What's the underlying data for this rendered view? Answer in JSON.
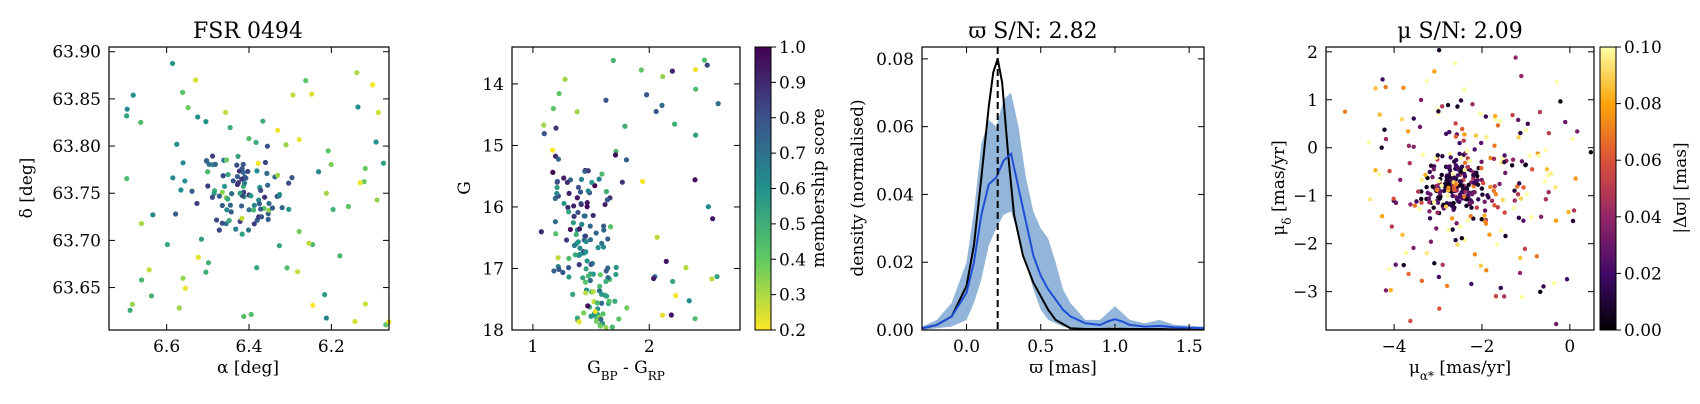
{
  "chart_data": [
    {
      "type": "scatter",
      "id": "sky",
      "title": "FSR 0494",
      "xlabel": "α [deg]",
      "ylabel": "δ [deg]",
      "xlim": [
        6.74,
        6.06
      ],
      "ylim": [
        63.605,
        63.905
      ],
      "xticks": [
        6.6,
        6.4,
        6.2
      ],
      "xtick_labels": [
        "6.6",
        "6.4",
        "6.2"
      ],
      "yticks": [
        63.65,
        63.7,
        63.75,
        63.8,
        63.85,
        63.9
      ],
      "ytick_labels": [
        "63.65",
        "63.70",
        "63.75",
        "63.80",
        "63.85",
        "63.90"
      ],
      "color_by": "membership score"
    },
    {
      "type": "scatter",
      "id": "cmd",
      "title": "",
      "xlabel": "G_BP - G_RP",
      "ylabel": "G",
      "xlim": [
        0.82,
        2.78
      ],
      "ylim": [
        18.0,
        13.4
      ],
      "xticks": [
        1,
        2
      ],
      "xtick_labels": [
        "1",
        "2"
      ],
      "yticks": [
        14,
        15,
        16,
        17,
        18
      ],
      "ytick_labels": [
        "14",
        "15",
        "16",
        "17",
        "18"
      ],
      "colorbar": {
        "label": "membership score",
        "colormap": "viridis_r",
        "range": [
          0.2,
          1.0
        ],
        "ticks": [
          "0.2",
          "0.3",
          "0.4",
          "0.5",
          "0.6",
          "0.7",
          "0.8",
          "0.9",
          "1.0"
        ]
      }
    },
    {
      "type": "line",
      "id": "parallax",
      "title": "ϖ S/N: 2.82",
      "xlabel": "ϖ [mas]",
      "ylabel": "density (normalised)",
      "xlim": [
        -0.3,
        1.6
      ],
      "ylim": [
        0,
        0.0835
      ],
      "xticks": [
        0.0,
        0.5,
        1.0,
        1.5
      ],
      "xtick_labels": [
        "0.0",
        "0.5",
        "1.0",
        "1.5"
      ],
      "yticks": [
        0.0,
        0.02,
        0.04,
        0.06,
        0.08
      ],
      "ytick_labels": [
        "0.00",
        "0.02",
        "0.04",
        "0.06",
        "0.08"
      ],
      "vline": 0.21,
      "series": [
        {
          "name": "cluster density",
          "color": "#000000",
          "x": [
            -0.3,
            -0.2,
            -0.1,
            0.0,
            0.05,
            0.1,
            0.15,
            0.18,
            0.21,
            0.24,
            0.28,
            0.32,
            0.38,
            0.45,
            0.5,
            0.55,
            0.6,
            0.7,
            0.8,
            0.9,
            1.0,
            1.1,
            1.2,
            1.3,
            1.4,
            1.6
          ],
          "y": [
            0.0005,
            0.0015,
            0.004,
            0.013,
            0.025,
            0.045,
            0.066,
            0.076,
            0.08,
            0.073,
            0.052,
            0.034,
            0.022,
            0.014,
            0.01,
            0.006,
            0.003,
            0.0005,
            0.0003,
            0.0003,
            0.0004,
            0.0003,
            0.0003,
            0.0003,
            0.0002,
            0.0002
          ]
        },
        {
          "name": "mean density",
          "color": "#1f4fd6",
          "x": [
            -0.3,
            -0.2,
            -0.1,
            0.0,
            0.05,
            0.1,
            0.15,
            0.2,
            0.25,
            0.3,
            0.35,
            0.4,
            0.45,
            0.5,
            0.55,
            0.6,
            0.65,
            0.7,
            0.8,
            0.9,
            0.95,
            1.0,
            1.05,
            1.1,
            1.2,
            1.3,
            1.4,
            1.6
          ],
          "y": [
            0.0005,
            0.0015,
            0.004,
            0.011,
            0.02,
            0.034,
            0.043,
            0.045,
            0.05,
            0.052,
            0.042,
            0.032,
            0.022,
            0.016,
            0.012,
            0.009,
            0.006,
            0.004,
            0.002,
            0.0015,
            0.0025,
            0.0032,
            0.0025,
            0.0015,
            0.001,
            0.0012,
            0.0008,
            0.0005
          ]
        },
        {
          "name": "1σ band upper",
          "color": "#6e9ccc",
          "x": [
            -0.3,
            -0.2,
            -0.1,
            0.0,
            0.05,
            0.1,
            0.15,
            0.2,
            0.25,
            0.3,
            0.35,
            0.4,
            0.45,
            0.5,
            0.55,
            0.6,
            0.65,
            0.7,
            0.8,
            0.9,
            0.95,
            1.0,
            1.05,
            1.1,
            1.2,
            1.3,
            1.4,
            1.6
          ],
          "y": [
            0.001,
            0.003,
            0.008,
            0.02,
            0.035,
            0.055,
            0.062,
            0.06,
            0.068,
            0.07,
            0.06,
            0.045,
            0.035,
            0.03,
            0.027,
            0.02,
            0.012,
            0.008,
            0.003,
            0.003,
            0.005,
            0.007,
            0.005,
            0.003,
            0.002,
            0.003,
            0.0015,
            0.001
          ]
        },
        {
          "name": "1σ band lower",
          "color": "#6e9ccc",
          "x": [
            -0.3,
            -0.2,
            -0.1,
            0.0,
            0.05,
            0.1,
            0.15,
            0.2,
            0.25,
            0.3,
            0.35,
            0.4,
            0.45,
            0.5,
            0.55,
            0.6,
            0.65,
            0.7,
            0.8,
            0.9,
            0.95,
            1.0,
            1.05,
            1.1,
            1.2,
            1.3,
            1.4,
            1.6
          ],
          "y": [
            0,
            0.0005,
            0.001,
            0.003,
            0.008,
            0.015,
            0.025,
            0.03,
            0.034,
            0.035,
            0.028,
            0.02,
            0.012,
            0.006,
            0.003,
            0.002,
            0.001,
            0.0005,
            0,
            0,
            0.0005,
            0.001,
            0.0005,
            0,
            0,
            0,
            0,
            0
          ]
        }
      ]
    },
    {
      "type": "scatter",
      "id": "pm",
      "title": "μ S/N: 2.09",
      "xlabel": "μ_α* [mas/yr]",
      "ylabel": "μ_δ [mas/yr]",
      "xlim": [
        -5.55,
        0.55
      ],
      "ylim": [
        -3.8,
        2.1
      ],
      "xticks": [
        -4,
        -2,
        0
      ],
      "xtick_labels": [
        "−4",
        "−2",
        "0"
      ],
      "yticks": [
        -3,
        -2,
        -1,
        0,
        1,
        2
      ],
      "ytick_labels": [
        "−3",
        "−2",
        "−1",
        "0",
        "1",
        "2"
      ],
      "colorbar": {
        "label": "|Δϖ| [mas]",
        "colormap": "inferno",
        "range": [
          0.0,
          0.1
        ],
        "ticks": [
          "0.00",
          "0.02",
          "0.04",
          "0.06",
          "0.08",
          "0.10"
        ]
      }
    }
  ]
}
